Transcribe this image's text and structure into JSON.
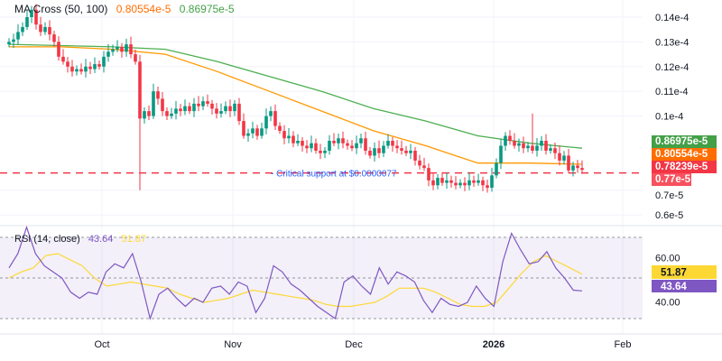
{
  "chart_data": [
    {
      "type": "candlestick",
      "title": "MA Cross (50, 100)",
      "ma50_value": "0.80554e-5",
      "ma100_value": "0.86975e-5",
      "price_unit": "e-5",
      "yticks": [
        "0.14e-4",
        "0.13e-4",
        "0.12e-4",
        "0.11e-4",
        "0.1e-4",
        "0.7e-5",
        "0.6e-5"
      ],
      "ytick_values": [
        1.4,
        1.3,
        1.2,
        1.1,
        1.0,
        0.7,
        0.6
      ],
      "ylim": [
        0.55,
        1.45
      ],
      "closes": [
        1.3,
        1.31,
        1.34,
        1.36,
        1.4,
        1.43,
        1.37,
        1.34,
        1.36,
        1.33,
        1.3,
        1.24,
        1.22,
        1.2,
        1.18,
        1.19,
        1.18,
        1.2,
        1.19,
        1.21,
        1.2,
        1.24,
        1.26,
        1.27,
        1.28,
        1.26,
        1.29,
        1.25,
        1.22,
        0.99,
        1.02,
        1.0,
        1.1,
        1.07,
        1.02,
        1.0,
        1.01,
        1.03,
        1.02,
        1.04,
        1.02,
        1.05,
        1.04,
        1.06,
        1.05,
        1.03,
        1.01,
        1.02,
        1.04,
        1.02,
        1.05,
        0.98,
        0.92,
        0.93,
        0.95,
        0.92,
        0.95,
        1.0,
        1.02,
        0.96,
        0.94,
        0.91,
        0.92,
        0.89,
        0.9,
        0.88,
        0.87,
        0.89,
        0.86,
        0.85,
        0.86,
        0.9,
        0.89,
        0.91,
        0.89,
        0.88,
        0.87,
        0.89,
        0.91,
        0.86,
        0.84,
        0.87,
        0.85,
        0.88,
        0.9,
        0.88,
        0.87,
        0.86,
        0.85,
        0.86,
        0.82,
        0.8,
        0.79,
        0.74,
        0.72,
        0.75,
        0.73,
        0.74,
        0.73,
        0.72,
        0.73,
        0.72,
        0.74,
        0.73,
        0.74,
        0.72,
        0.71,
        0.76,
        0.81,
        0.88,
        0.92,
        0.9,
        0.88,
        0.89,
        0.87,
        0.88,
        0.86,
        0.88,
        0.9,
        0.86,
        0.87,
        0.85,
        0.82,
        0.84,
        0.78,
        0.8,
        0.79,
        0.78239
      ],
      "ma50": [
        1.28,
        1.28,
        1.27,
        1.25,
        1.18,
        1.1,
        1.02,
        0.94,
        0.88,
        0.81,
        0.81,
        0.805
      ],
      "ma100": [
        1.29,
        1.285,
        1.28,
        1.27,
        1.22,
        1.16,
        1.1,
        1.03,
        0.98,
        0.92,
        0.89,
        0.87
      ],
      "tags": [
        {
          "label": "0.86975e-5",
          "value": 0.86975,
          "color": "#43a047"
        },
        {
          "label": "0.80554e-5",
          "value": 0.80554,
          "color": "#ff6d00"
        },
        {
          "label": "0.78239e-5",
          "value": 0.78239,
          "color": "#f23645"
        },
        {
          "label": "0.77e-5",
          "value": 0.77,
          "color": "#f7525f"
        }
      ],
      "annotation": "Critical support at $0.0000077",
      "support_level": 0.77
    },
    {
      "type": "line",
      "title": "RSI (14, close)",
      "rsi_value": "43.64",
      "rsi_ma_value": "51.87",
      "yticks": [
        "60.00",
        "40.00"
      ],
      "bands": [
        70,
        50,
        30
      ],
      "ylim": [
        25,
        80
      ],
      "rsi": [
        55,
        62,
        75,
        62,
        56,
        53,
        50,
        43,
        40,
        43,
        42,
        53,
        57,
        55,
        62,
        48,
        30,
        42,
        45,
        40,
        36,
        40,
        38,
        45,
        46,
        42,
        48,
        46,
        33,
        40,
        56,
        53,
        47,
        44,
        40,
        36,
        33,
        30,
        48,
        51,
        46,
        42,
        55,
        47,
        53,
        51,
        48,
        39,
        33,
        40,
        37,
        36,
        38,
        46,
        40,
        36,
        58,
        72,
        64,
        57,
        58,
        63,
        55,
        50,
        44,
        43.64
      ],
      "rsi_ma": [
        50,
        53,
        55,
        61,
        62,
        59,
        56,
        50,
        46,
        47,
        48,
        47,
        46,
        45,
        42,
        40,
        38,
        39,
        40,
        42,
        44,
        43,
        42,
        41,
        40,
        39,
        37,
        36,
        36,
        37,
        38,
        41,
        45,
        45,
        45,
        43,
        40,
        37,
        36,
        36,
        38,
        45,
        52,
        58,
        61,
        58,
        55,
        51.87
      ]
    }
  ],
  "xaxis": {
    "labels": [
      "Oct",
      "Nov",
      "Dec",
      "2026",
      "Feb"
    ]
  },
  "colors": {
    "up": "#089981",
    "down": "#f23645",
    "ma50": "#ff9800",
    "ma100": "#4caf50",
    "rsi": "#7e57c2",
    "rsi_ma": "#fdd835"
  }
}
